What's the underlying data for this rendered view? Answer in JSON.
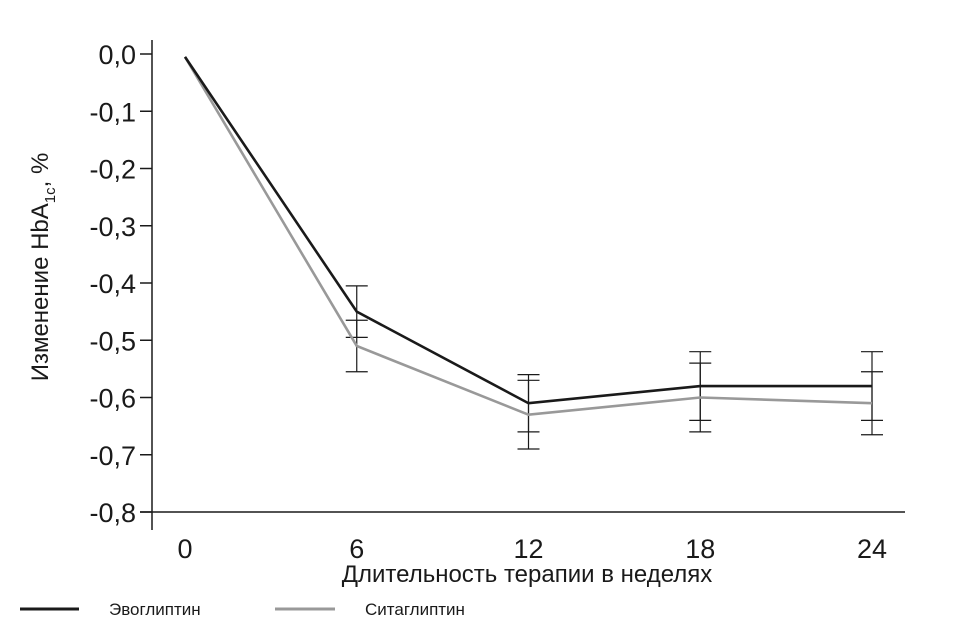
{
  "chart_data": {
    "type": "line",
    "xlabel": "Длительность терапии в неделях",
    "ylabel": {
      "main": "Изменение HbA",
      "sub": "1c",
      "suffix": ", %"
    },
    "x": [
      0,
      6,
      12,
      18,
      24
    ],
    "x_tick_labels": [
      "0",
      "6",
      "12",
      "18",
      "24"
    ],
    "y_ticks": [
      0.0,
      -0.1,
      -0.2,
      -0.3,
      -0.4,
      -0.5,
      -0.6,
      -0.7,
      -0.8
    ],
    "y_tick_labels": [
      "0,0",
      "-0,1",
      "-0,2",
      "-0,3",
      "-0,4",
      "-0,5",
      "-0,6",
      "-0,7",
      "-0,8"
    ],
    "ylim": [
      -0.8,
      0.0
    ],
    "grid": false,
    "legend_position": "bottom-left",
    "series": [
      {
        "name": "Эвоглиптин",
        "color": "#1a1a1a",
        "values": [
          -0.005,
          -0.45,
          -0.61,
          -0.58,
          -0.58
        ],
        "error": [
          0.0,
          0.045,
          0.05,
          0.06,
          0.06
        ]
      },
      {
        "name": "Ситаглиптин",
        "color": "#999999",
        "values": [
          -0.005,
          -0.51,
          -0.63,
          -0.6,
          -0.61
        ],
        "error": [
          0.0,
          0.045,
          0.06,
          0.06,
          0.055
        ]
      }
    ]
  }
}
